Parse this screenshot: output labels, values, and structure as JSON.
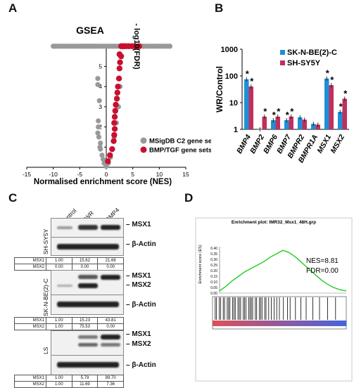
{
  "panels": {
    "A": "A",
    "B": "B",
    "C": "C",
    "D": "D"
  },
  "panel_a": {
    "title": "GSEA",
    "xlabel": "Normalised enrichment score (NES)",
    "ylabel": "- log10(FDR)",
    "xticks": [
      "-15",
      "-10",
      "-5",
      "0",
      "5",
      "10",
      "15"
    ],
    "yticks": [
      "0",
      "1",
      "2",
      "3",
      "4",
      "5",
      "6"
    ],
    "legend": [
      "MSigDB C2 gene sets",
      "BMP/TGF gene sets"
    ],
    "colors": {
      "grey": "#999999",
      "red": "#c8102e"
    }
  },
  "chart_data": [
    {
      "type": "scatter",
      "panel": "A",
      "title": "GSEA",
      "xlabel": "Normalised enrichment score (NES)",
      "ylabel": "- log10(FDR)",
      "xlim": [
        -15,
        15
      ],
      "ylim": [
        0,
        6.2
      ],
      "series": [
        {
          "name": "MSigDB C2 gene sets",
          "color": "#999999",
          "x": [
            -10,
            -9.5,
            -4.8,
            -4,
            -3.5,
            -3,
            -2.6,
            -2.2,
            -1.6,
            -1.6,
            -1.3,
            -1.5,
            -1.5,
            -1.6,
            -1.4,
            -1.1,
            -1.2,
            -1.1,
            -0.8,
            -0.6,
            -0.4,
            0,
            0.4,
            0.8,
            1.2,
            1.5,
            1.9,
            2.3,
            2.6,
            3.2,
            4,
            5,
            7,
            9,
            12
          ],
          "y": [
            6,
            6,
            6,
            6,
            6,
            6,
            6,
            6,
            4.4,
            4.1,
            3.3,
            2.3,
            2.0,
            1.7,
            1.5,
            1.2,
            1.0,
            0.9,
            0.6,
            0.4,
            0.2,
            0.05,
            0.2,
            0.5,
            0.9,
            1.5,
            2.2,
            3.0,
            4.0,
            6,
            6,
            6,
            6,
            6,
            6
          ]
        },
        {
          "name": "BMP/TGF gene sets",
          "color": "#c8102e",
          "x": [
            0.3,
            0.7,
            1.1,
            1.4,
            1.5,
            1.6,
            1.5,
            1.6,
            1.7,
            1.8,
            2.0,
            2.1,
            2.2,
            2.4,
            2.5,
            2.6,
            2.8,
            2.5,
            2.8,
            3.1,
            3.4,
            3.8,
            4.3,
            4.9,
            5.4,
            6.2
          ],
          "y": [
            0.3,
            0.6,
            0.9,
            1.3,
            1.6,
            1.9,
            2.2,
            2.5,
            2.8,
            3.1,
            3.4,
            3.7,
            4.0,
            4.4,
            4.9,
            5.2,
            5.5,
            5.6,
            6,
            6,
            6,
            6,
            6,
            6,
            6,
            6
          ]
        }
      ]
    },
    {
      "type": "bar",
      "panel": "B",
      "ylabel": "WR/Control",
      "scale": "log",
      "ylim": [
        1,
        1000
      ],
      "yticks": [
        "1",
        "10",
        "100",
        "1000"
      ],
      "categories": [
        "BMP4",
        "BMP2",
        "BMP6",
        "BMP7",
        "BMPR2",
        "BMPR1A",
        "MSX1",
        "MSX2"
      ],
      "legend_position": "top-right",
      "series": [
        {
          "name": "SK-N-BE(2)-C",
          "color": "#1f8fd6",
          "values": [
            75,
            1.0,
            2.2,
            2.2,
            2.8,
            1.6,
            80,
            4.5
          ],
          "significant": [
            true,
            false,
            true,
            true,
            false,
            false,
            true,
            true
          ]
        },
        {
          "name": "SH-SY5Y",
          "color": "#c0305e",
          "values": [
            40,
            3.0,
            3.0,
            3.0,
            2.3,
            1.5,
            45,
            14
          ],
          "significant": [
            true,
            true,
            true,
            true,
            false,
            false,
            true,
            true
          ]
        }
      ]
    },
    {
      "type": "line",
      "panel": "D",
      "title": "Enrichment plot: IMR32_Msx1_48H.grp",
      "ylabel": "Enrichment score (ES)",
      "ylim": [
        0,
        0.4
      ],
      "yticks": [
        "0.40",
        "0.35",
        "0.30",
        "0.25",
        "0.20",
        "0.15",
        "0.10",
        "0.05",
        "0.00"
      ],
      "annotations": [
        "NES=8.81",
        "FDR=0.00"
      ],
      "color": "#22cc22",
      "x": [
        0,
        5,
        10,
        15,
        20,
        25,
        30,
        35,
        40,
        45,
        50,
        55,
        60,
        65,
        70,
        75,
        80,
        85,
        90,
        95,
        100
      ],
      "y": [
        0.02,
        0.06,
        0.11,
        0.15,
        0.19,
        0.22,
        0.25,
        0.28,
        0.32,
        0.35,
        0.38,
        0.36,
        0.32,
        0.27,
        0.22,
        0.17,
        0.12,
        0.08,
        0.05,
        0.03,
        0.02
      ]
    }
  ],
  "panel_c": {
    "lanes": [
      "Control",
      "WR",
      "BMP4"
    ],
    "blocks": [
      {
        "cell": "SH-SY5Y",
        "bands": [
          "MSX1",
          "β-Actin"
        ],
        "table": [
          [
            "MSX1",
            "1.00",
            "15.62",
            "21.66"
          ],
          [
            "MSX2",
            "0.00",
            "0.00",
            "0.00"
          ]
        ]
      },
      {
        "cell": "SK-N-BE(2)-C",
        "bands": [
          "MSX1",
          "MSX2",
          "β-Actin"
        ],
        "table": [
          [
            "MSX1",
            "1.00",
            "15.23",
            "43.81"
          ],
          [
            "MSX2",
            "1.00",
            "75.53",
            "0.00"
          ]
        ]
      },
      {
        "cell": "LS",
        "bands": [
          "MSX1",
          "MSX2",
          "β-Actin"
        ],
        "table": [
          [
            "MSX1",
            "1.00",
            "5.79",
            "89.70"
          ],
          [
            "MSX2",
            "1.00",
            "11.69",
            "7.36"
          ]
        ]
      }
    ]
  },
  "panel_d": {
    "title": "Enrichment plot: IMR32_Msx1_48H.grp",
    "ylabel": "Enrichment score (ES)",
    "nes": "NES=8.81",
    "fdr": "FDR=0.00"
  }
}
